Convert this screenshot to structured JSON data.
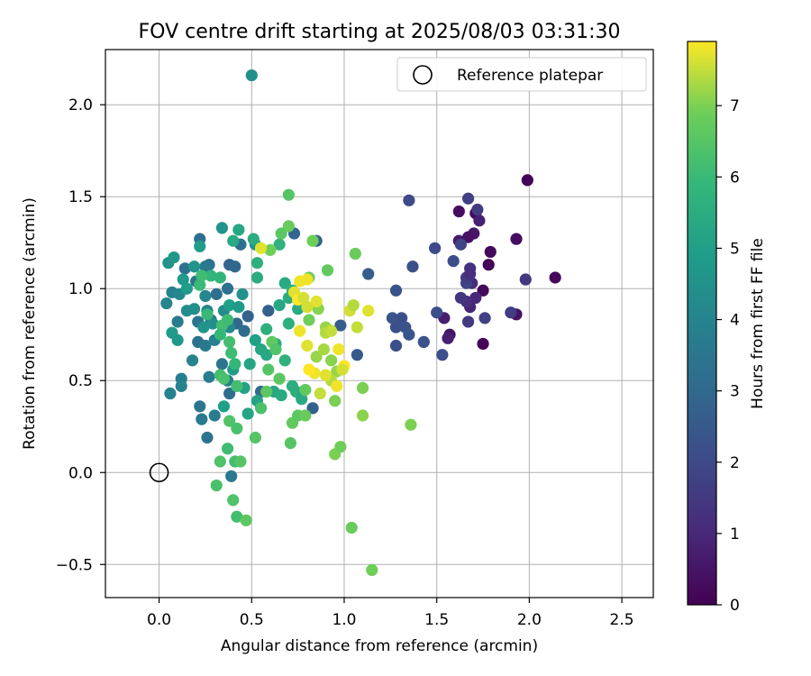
{
  "chart_data": {
    "type": "scatter",
    "title": "FOV centre drift starting at 2025/08/03 03:31:30",
    "xlabel": "Angular distance from reference (arcmin)",
    "ylabel": "Rotation from reference (arcmin)",
    "xlim": [
      -0.29,
      2.67
    ],
    "ylim": [
      -0.68,
      2.3
    ],
    "x_ticks": [
      "0.0",
      "0.5",
      "1.0",
      "1.5",
      "2.0",
      "2.5"
    ],
    "y_ticks": [
      "−0.5",
      "0.0",
      "0.5",
      "1.0",
      "1.5",
      "2.0"
    ],
    "grid": true,
    "legend": {
      "label": "Reference platepar",
      "placement": "top-right"
    },
    "reference_point": {
      "x": 0.0,
      "y": 0.0
    },
    "colorbar": {
      "label": "Hours from first FF file",
      "range": [
        0,
        7.9
      ],
      "ticks": [
        "0",
        "1",
        "2",
        "3",
        "4",
        "5",
        "6",
        "7"
      ],
      "colormap": "viridis"
    },
    "points": [
      [
        1.99,
        1.59,
        0.1
      ],
      [
        2.14,
        1.06,
        0.2
      ],
      [
        1.93,
        1.27,
        0.3
      ],
      [
        1.93,
        0.86,
        0.4
      ],
      [
        1.75,
        0.99,
        0.2
      ],
      [
        1.75,
        0.7,
        0.1
      ],
      [
        1.79,
        1.2,
        0.2
      ],
      [
        1.78,
        1.13,
        0.1
      ],
      [
        1.62,
        1.42,
        0.3
      ],
      [
        1.71,
        1.41,
        0.2
      ],
      [
        1.7,
        1.3,
        0.5
      ],
      [
        1.62,
        1.26,
        0.6
      ],
      [
        1.67,
        1.28,
        0.4
      ],
      [
        1.73,
        1.37,
        0.8
      ],
      [
        1.54,
        0.84,
        0.7
      ],
      [
        1.57,
        0.75,
        0.5
      ],
      [
        1.56,
        0.73,
        0.8
      ],
      [
        1.68,
        0.9,
        0.9
      ],
      [
        1.69,
        1.03,
        1.1
      ],
      [
        1.71,
        0.95,
        1.0
      ],
      [
        1.66,
        0.93,
        1.2
      ],
      [
        1.68,
        1.11,
        1.3
      ],
      [
        1.63,
        0.95,
        1.4
      ],
      [
        1.67,
        0.82,
        1.5
      ],
      [
        1.72,
        1.43,
        1.6
      ],
      [
        1.67,
        1.49,
        1.7
      ],
      [
        1.63,
        1.24,
        1.8
      ],
      [
        1.66,
        1.03,
        1.9
      ],
      [
        1.66,
        1.06,
        1.6
      ],
      [
        1.68,
        1.08,
        1.2
      ],
      [
        1.76,
        0.84,
        1.7
      ],
      [
        1.9,
        0.87,
        1.6
      ],
      [
        1.98,
        1.05,
        1.4
      ],
      [
        1.59,
        1.15,
        2.1
      ],
      [
        1.49,
        1.22,
        2.0
      ],
      [
        1.5,
        0.87,
        2.1
      ],
      [
        1.53,
        0.64,
        2.2
      ],
      [
        1.35,
        1.48,
        2.0
      ],
      [
        1.37,
        1.12,
        2.2
      ],
      [
        1.28,
        0.99,
        2.3
      ],
      [
        1.26,
        0.84,
        2.4
      ],
      [
        1.31,
        0.84,
        2.2
      ],
      [
        1.28,
        0.79,
        2.2
      ],
      [
        1.33,
        0.79,
        2.3
      ],
      [
        1.28,
        0.69,
        2.2
      ],
      [
        1.35,
        0.75,
        2.4
      ],
      [
        1.43,
        0.71,
        2.3
      ],
      [
        1.13,
        1.08,
        2.6
      ],
      [
        1.07,
        0.64,
        2.5
      ],
      [
        0.98,
        0.8,
        2.6
      ],
      [
        0.85,
        1.26,
        2.8
      ],
      [
        0.73,
        1.3,
        2.9
      ],
      [
        0.59,
        0.88,
        2.7
      ],
      [
        0.48,
        0.85,
        2.8
      ],
      [
        0.38,
        1.13,
        2.9
      ],
      [
        0.41,
        1.12,
        3.0
      ],
      [
        0.55,
        0.44,
        3.0
      ],
      [
        0.44,
        1.24,
        3.2
      ],
      [
        0.37,
        1.0,
        3.3
      ],
      [
        0.42,
        0.81,
        3.0
      ],
      [
        0.46,
        0.77,
        3.1
      ],
      [
        0.31,
        0.97,
        3.2
      ],
      [
        0.27,
        1.13,
        3.3
      ],
      [
        0.22,
        1.27,
        3.2
      ],
      [
        0.2,
        1.04,
        3.4
      ],
      [
        0.25,
        1.12,
        3.6
      ],
      [
        0.21,
        0.82,
        3.5
      ],
      [
        0.14,
        1.11,
        3.3
      ],
      [
        0.28,
        0.83,
        3.5
      ],
      [
        0.21,
        0.71,
        3.3
      ],
      [
        0.25,
        0.69,
        3.6
      ],
      [
        0.34,
        0.59,
        3.4
      ],
      [
        0.38,
        0.43,
        3.2
      ],
      [
        0.22,
        0.36,
        3.5
      ],
      [
        0.23,
        0.29,
        3.6
      ],
      [
        0.26,
        0.19,
        3.4
      ],
      [
        0.3,
        0.31,
        3.7
      ],
      [
        0.37,
        0.5,
        3.8
      ],
      [
        0.83,
        0.35,
        2.7
      ],
      [
        0.39,
        -0.02,
        3.6
      ],
      [
        0.1,
        0.82,
        3.7
      ],
      [
        0.12,
        0.51,
        3.8
      ],
      [
        0.12,
        0.47,
        3.9
      ],
      [
        0.06,
        0.43,
        3.9
      ],
      [
        0.18,
        0.61,
        4.0
      ],
      [
        0.26,
        0.88,
        4.0
      ],
      [
        0.27,
        0.52,
        3.8
      ],
      [
        0.3,
        0.72,
        3.9
      ],
      [
        0.38,
        0.79,
        4.2
      ],
      [
        0.04,
        0.92,
        4.1
      ],
      [
        0.07,
        0.98,
        4.0
      ],
      [
        0.11,
        0.97,
        4.2
      ],
      [
        0.15,
        0.88,
        4.3
      ],
      [
        0.19,
        0.89,
        4.4
      ],
      [
        0.25,
        0.96,
        4.1
      ],
      [
        0.29,
        0.81,
        4.4
      ],
      [
        0.35,
        0.88,
        4.3
      ],
      [
        0.45,
        0.97,
        4.5
      ],
      [
        0.34,
        1.33,
        4.6
      ],
      [
        0.52,
        1.24,
        4.6
      ],
      [
        0.5,
        2.16,
        4.4
      ],
      [
        0.05,
        1.14,
        4.5
      ],
      [
        0.08,
        1.17,
        4.7
      ],
      [
        0.13,
        1.05,
        4.8
      ],
      [
        0.15,
        1.0,
        4.9
      ],
      [
        0.19,
        1.12,
        4.6
      ],
      [
        0.22,
        1.23,
        4.9
      ],
      [
        0.07,
        0.76,
        4.8
      ],
      [
        0.1,
        0.72,
        4.7
      ],
      [
        0.24,
        0.79,
        4.6
      ],
      [
        0.38,
        0.91,
        5.0
      ],
      [
        0.43,
        0.9,
        4.8
      ],
      [
        0.4,
        0.56,
        4.9
      ],
      [
        0.46,
        0.46,
        5.1
      ],
      [
        0.35,
        0.36,
        5.0
      ],
      [
        0.48,
        0.32,
        5.2
      ],
      [
        0.53,
        0.39,
        5.1
      ],
      [
        0.49,
        0.59,
        5.2
      ],
      [
        0.52,
        0.72,
        5.0
      ],
      [
        0.55,
        0.67,
        5.3
      ],
      [
        0.58,
        0.64,
        5.3
      ],
      [
        0.4,
        1.26,
        5.4
      ],
      [
        0.43,
        1.32,
        5.3
      ],
      [
        0.51,
        1.27,
        5.5
      ],
      [
        0.53,
        1.06,
        5.5
      ],
      [
        0.53,
        1.14,
        5.6
      ],
      [
        0.65,
        0.91,
        5.3
      ],
      [
        0.58,
        0.78,
        5.6
      ],
      [
        0.63,
        0.7,
        5.4
      ],
      [
        0.68,
        0.61,
        5.7
      ],
      [
        0.62,
        0.44,
        5.3
      ],
      [
        0.66,
        0.42,
        5.4
      ],
      [
        0.72,
        0.47,
        5.6
      ],
      [
        0.74,
        0.44,
        5.5
      ],
      [
        0.77,
        0.4,
        5.4
      ],
      [
        0.65,
        1.24,
        5.7
      ],
      [
        0.68,
        1.03,
        5.4
      ],
      [
        0.7,
        0.95,
        5.5
      ],
      [
        0.72,
        0.99,
        5.7
      ],
      [
        0.75,
        0.89,
        5.4
      ],
      [
        0.7,
        0.81,
        5.6
      ],
      [
        0.33,
        1.06,
        5.8
      ],
      [
        0.28,
        1.07,
        5.8
      ],
      [
        0.22,
        1.02,
        6.0
      ],
      [
        0.23,
        1.07,
        6.1
      ],
      [
        0.26,
        0.86,
        6.0
      ],
      [
        0.39,
        0.65,
        6.1
      ],
      [
        0.41,
        0.59,
        5.9
      ],
      [
        0.38,
        0.71,
        6.2
      ],
      [
        0.34,
        0.8,
        6.2
      ],
      [
        0.37,
        0.83,
        6.1
      ],
      [
        0.33,
        0.75,
        5.9
      ],
      [
        0.33,
        0.53,
        6.2
      ],
      [
        0.35,
        0.51,
        6.3
      ],
      [
        0.42,
        0.47,
        6.2
      ],
      [
        0.38,
        0.28,
        6.4
      ],
      [
        0.37,
        0.13,
        6.1
      ],
      [
        0.42,
        0.24,
        6.3
      ],
      [
        0.33,
        0.06,
        6.4
      ],
      [
        0.41,
        0.06,
        6.2
      ],
      [
        0.44,
        0.06,
        6.5
      ],
      [
        0.31,
        -0.07,
        6.3
      ],
      [
        0.4,
        -0.15,
        6.4
      ],
      [
        0.42,
        -0.24,
        6.2
      ],
      [
        0.47,
        -0.26,
        6.6
      ],
      [
        0.52,
        0.19,
        6.5
      ],
      [
        0.55,
        0.35,
        6.3
      ],
      [
        0.58,
        0.44,
        6.6
      ],
      [
        0.59,
        0.56,
        6.5
      ],
      [
        0.61,
        0.71,
        6.7
      ],
      [
        0.63,
        0.67,
        6.4
      ],
      [
        0.65,
        0.51,
        6.6
      ],
      [
        0.71,
        0.16,
        6.5
      ],
      [
        0.72,
        0.27,
        6.7
      ],
      [
        0.75,
        0.31,
        6.6
      ],
      [
        0.79,
        0.31,
        6.8
      ],
      [
        0.79,
        0.45,
        6.7
      ],
      [
        0.66,
        1.3,
        6.6
      ],
      [
        0.7,
        1.34,
        6.8
      ],
      [
        0.7,
        1.51,
        6.5
      ],
      [
        0.6,
        1.21,
        6.9
      ],
      [
        0.81,
        1.06,
        6.8
      ],
      [
        0.83,
        1.26,
        6.9
      ],
      [
        0.81,
        0.83,
        6.9
      ],
      [
        0.91,
        1.1,
        6.7
      ],
      [
        1.06,
        1.19,
        6.8
      ],
      [
        0.95,
        0.39,
        7.0
      ],
      [
        0.95,
        0.1,
        7.0
      ],
      [
        0.98,
        0.14,
        6.9
      ],
      [
        1.04,
        -0.3,
        6.8
      ],
      [
        1.15,
        -0.53,
        6.9
      ],
      [
        1.36,
        0.26,
        7.0
      ],
      [
        1.1,
        0.31,
        7.1
      ],
      [
        1.1,
        0.46,
        7.0
      ],
      [
        0.86,
        0.89,
        7.1
      ],
      [
        0.9,
        0.79,
        7.2
      ],
      [
        0.85,
        0.63,
        7.2
      ],
      [
        0.89,
        0.67,
        7.3
      ],
      [
        0.93,
        0.61,
        7.1
      ],
      [
        0.96,
        0.55,
        7.2
      ],
      [
        0.93,
        0.5,
        7.4
      ],
      [
        0.9,
        0.76,
        7.4
      ],
      [
        0.93,
        0.77,
        7.5
      ],
      [
        1.03,
        0.88,
        7.6
      ],
      [
        1.05,
        0.91,
        7.4
      ],
      [
        1.07,
        0.79,
        7.5
      ],
      [
        1.13,
        0.88,
        7.7
      ],
      [
        0.8,
        0.9,
        7.6
      ],
      [
        0.85,
        0.93,
        7.7
      ],
      [
        0.76,
        1.04,
        7.8
      ],
      [
        0.8,
        1.05,
        7.8
      ],
      [
        0.73,
        0.98,
        7.7
      ],
      [
        0.75,
        0.94,
        7.9
      ],
      [
        0.78,
        0.95,
        7.6
      ],
      [
        0.76,
        0.77,
        7.8
      ],
      [
        0.8,
        0.69,
        7.7
      ],
      [
        0.84,
        0.54,
        7.8
      ],
      [
        0.81,
        0.56,
        7.9
      ],
      [
        0.9,
        0.53,
        7.7
      ],
      [
        0.97,
        0.67,
        7.8
      ],
      [
        1.0,
        0.58,
        7.9
      ],
      [
        0.96,
        0.47,
        7.8
      ],
      [
        0.99,
        0.56,
        7.6
      ],
      [
        0.87,
        0.43,
        7.5
      ],
      [
        0.55,
        1.22,
        7.7
      ]
    ]
  }
}
